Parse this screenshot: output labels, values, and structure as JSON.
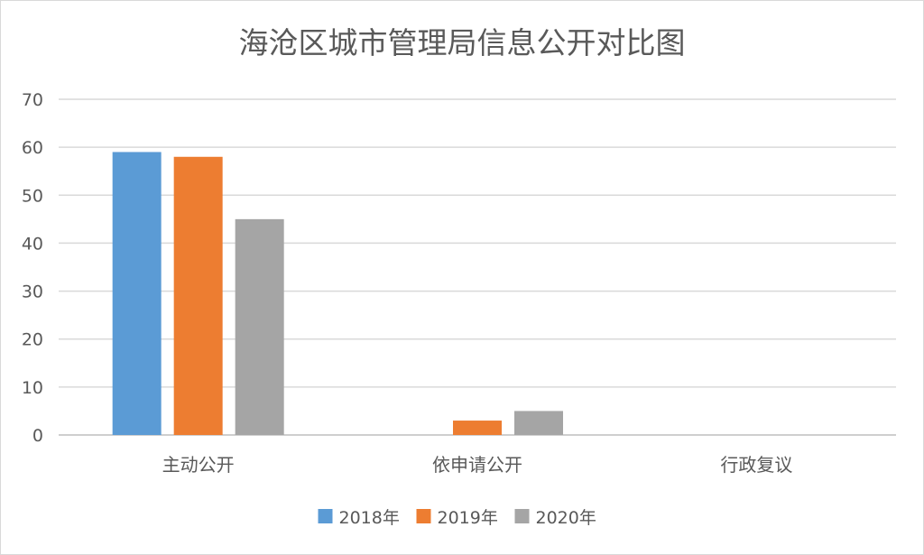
{
  "chart_data": {
    "type": "bar",
    "title": "海沧区城市管理局信息公开对比图",
    "xlabel": "",
    "ylabel": "",
    "categories": [
      "主动公开",
      "依申请公开",
      "行政复议"
    ],
    "series": [
      {
        "name": "2018年",
        "color": "#5b9bd5",
        "values": [
          59,
          0,
          0
        ]
      },
      {
        "name": "2019年",
        "color": "#ed7d31",
        "values": [
          58,
          3,
          0
        ]
      },
      {
        "name": "2020年",
        "color": "#a5a5a5",
        "values": [
          45,
          5,
          0
        ]
      }
    ],
    "ylim": [
      0,
      70
    ],
    "yticks": [
      0,
      10,
      20,
      30,
      40,
      50,
      60,
      70
    ],
    "grid": true,
    "legend_position": "bottom"
  }
}
